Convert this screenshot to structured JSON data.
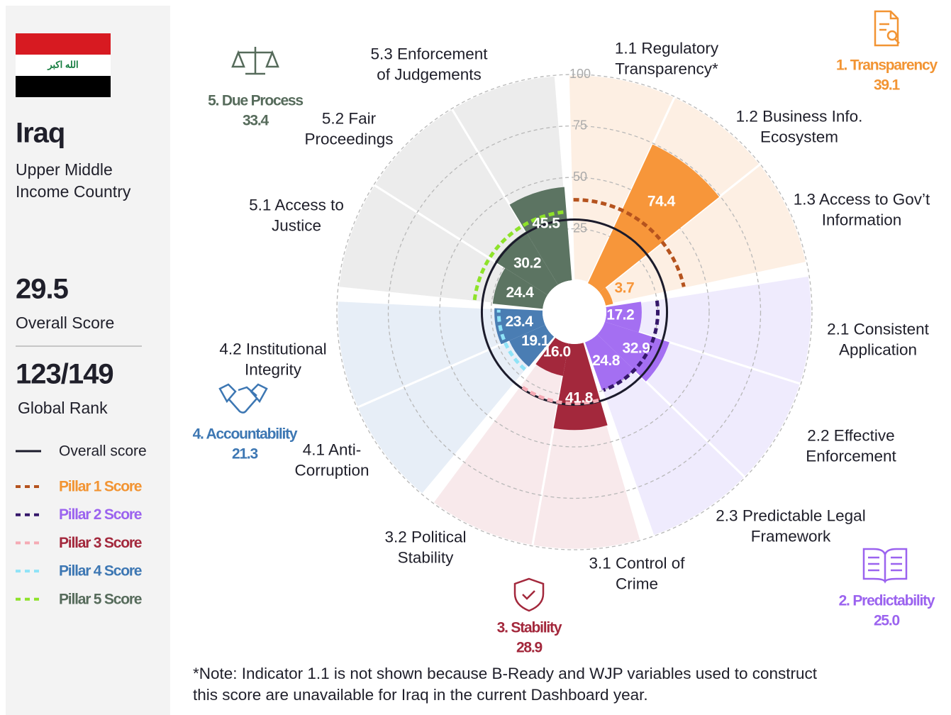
{
  "country": {
    "name": "Iraq",
    "flag_text": "الله اكبر",
    "income": [
      "Upper Middle",
      "Income Country"
    ],
    "overall_label": "Overall Score",
    "rank": "123/149",
    "rank_label": "Global Rank"
  },
  "chart_data": {
    "type": "polar_bar",
    "rlim": [
      0,
      100
    ],
    "rticks": [
      25,
      50,
      75,
      100
    ],
    "overall_score": 29.5,
    "overall_color": "#1b1b2b",
    "legend": {
      "overall": "Overall score",
      "pillar_scores": [
        "Pillar 1 Score",
        "Pillar 2 Score",
        "Pillar 3 Score",
        "Pillar 4 Score",
        "Pillar 5 Score"
      ]
    },
    "pillars": [
      {
        "name": "1. Transparency",
        "score": 39.1,
        "color": "#f7963a",
        "text_color": "#f29433",
        "bg": "#fdefe3",
        "score_color": "#b5531e",
        "indicators": [
          {
            "label": [
              "1.1 Regulatory",
              "Transparency*"
            ],
            "value": null
          },
          {
            "label": [
              "1.2 Business Info.",
              "Ecosystem"
            ],
            "value": 74.4
          },
          {
            "label": [
              "1.3 Access to Gov’t",
              "Information"
            ],
            "value": 3.7
          }
        ]
      },
      {
        "name": "2. Predictability",
        "score": 25.0,
        "score_label": "25.0",
        "color": "#a46ff2",
        "text_color": "#9b63ef",
        "bg": "#efebfd",
        "score_color": "#35176a",
        "indicators": [
          {
            "label": [
              "2.1 Consistent",
              "Application"
            ],
            "value": 17.2
          },
          {
            "label": [
              "2.2 Effective",
              "Enforcement"
            ],
            "value": 32.9
          },
          {
            "label": [
              "2.3 Predictable Legal",
              "Framework"
            ],
            "value": 24.8
          }
        ]
      },
      {
        "name": "3. Stability",
        "score": 28.9,
        "color": "#a3283c",
        "text_color": "#a3283c",
        "bg": "#f8e9eb",
        "score_color": "#f5aab4",
        "indicators": [
          {
            "label": [
              "3.1 Control of",
              "Crime"
            ],
            "value": 41.8
          },
          {
            "label": [
              "3.2 Political",
              "Stability"
            ],
            "value": 16.0,
            "value_label": "16.0"
          }
        ]
      },
      {
        "name": "4. Accountability",
        "score": 21.3,
        "color": "#4a7db3",
        "text_color": "#3d77b3",
        "bg": "#e7eef7",
        "score_color": "#8fe3f7",
        "indicators": [
          {
            "label": [
              "4.1 Anti-",
              "Corruption"
            ],
            "value": 19.1
          },
          {
            "label": [
              "4.2 Institutional",
              "Integrity"
            ],
            "value": 23.4
          }
        ]
      },
      {
        "name": "5. Due Process",
        "score": 33.4,
        "color": "#5c7462",
        "text_color": "#566b5b",
        "bg": "#ececec",
        "score_color": "#8ee22a",
        "indicators": [
          {
            "label": [
              "5.1 Access to",
              "Justice"
            ],
            "value": 24.4
          },
          {
            "label": [
              "5.2 Fair",
              "Proceedings"
            ],
            "value": 30.2
          },
          {
            "label": [
              "5.3 Enforcement",
              "of Judgements"
            ],
            "value": 45.5
          }
        ]
      }
    ]
  },
  "note": [
    "*Note: Indicator 1.1 is not shown because B-Ready and WJP variables used to construct",
    "this score are unavailable for Iraq in the current Dashboard year."
  ]
}
